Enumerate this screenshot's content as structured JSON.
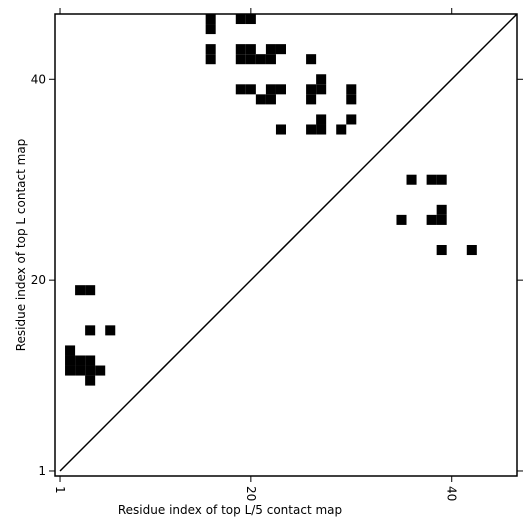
{
  "chart_data": {
    "type": "scatter",
    "marker": "square",
    "color": "#000000",
    "x_label": "Residue index of top L/5 contact map",
    "y_label": "Residue index of top L contact map",
    "xlim": [
      0.5,
      46.5
    ],
    "ylim": [
      0.5,
      46.5
    ],
    "xticks": [
      1,
      20,
      40
    ],
    "yticks": [
      1,
      20,
      40
    ],
    "diagonal": true,
    "x": [
      16,
      16,
      16,
      16,
      19,
      20,
      19,
      20,
      19,
      20,
      21,
      22,
      22,
      23,
      26,
      19,
      20,
      21,
      22,
      22,
      23,
      27,
      26,
      27,
      26,
      30,
      30,
      30,
      27,
      26,
      27,
      23,
      29,
      3,
      4,
      4,
      6,
      2,
      2,
      2,
      3,
      3,
      4,
      4,
      5,
      4,
      36,
      38,
      39,
      39,
      39,
      38,
      35,
      39,
      42
    ],
    "y": [
      46,
      45,
      43,
      42,
      46,
      46,
      43,
      43,
      42,
      42,
      42,
      42,
      43,
      43,
      42,
      39,
      39,
      38,
      38,
      39,
      39,
      40,
      39,
      39,
      38,
      39,
      38,
      36,
      36,
      35,
      35,
      35,
      35,
      19,
      19,
      15,
      15,
      13,
      12,
      11,
      12,
      11,
      12,
      11,
      11,
      10,
      30,
      30,
      30,
      27,
      26,
      26,
      26,
      23,
      23
    ]
  }
}
